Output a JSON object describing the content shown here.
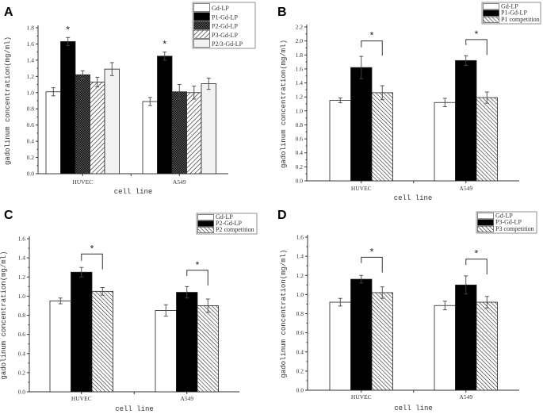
{
  "chart_data": [
    {
      "panel": "A",
      "type": "bar",
      "xlabel": "cell line",
      "ylabel": "gadolinum concentration(mg/ml)",
      "categories": [
        "HUVEC",
        "A549"
      ],
      "ylim": [
        0,
        1.8
      ],
      "yticks": [
        "0.0",
        "0.2",
        "0.4",
        "0.6",
        "0.8",
        "1.0",
        "1.2",
        "1.4",
        "1.6",
        "1.8"
      ],
      "legend_position": "top-right",
      "series": [
        {
          "name": "Gd-LP",
          "fill": "white",
          "values": [
            1.01,
            0.89
          ],
          "errors": [
            0.05,
            0.05
          ]
        },
        {
          "name": "P1-Gd-LP",
          "fill": "black",
          "values": [
            1.63,
            1.45
          ],
          "errors": [
            0.05,
            0.05
          ]
        },
        {
          "name": "P2-Gd-LP",
          "fill": "crosshatch",
          "values": [
            1.22,
            1.01
          ],
          "errors": [
            0.05,
            0.09
          ]
        },
        {
          "name": "P3-Gd-LP",
          "fill": "backslash-hatch",
          "values": [
            1.13,
            1.0
          ],
          "errors": [
            0.06,
            0.08
          ]
        },
        {
          "name": "P2/3-Gd-LP",
          "fill": "light-gray",
          "values": [
            1.29,
            1.11
          ],
          "errors": [
            0.08,
            0.07
          ]
        }
      ],
      "significance": [
        {
          "category": "HUVEC",
          "series": "P1-Gd-LP",
          "label": "*"
        },
        {
          "category": "A549",
          "series": "P1-Gd-LP",
          "label": "*"
        }
      ]
    },
    {
      "panel": "B",
      "type": "bar",
      "xlabel": "cell line",
      "ylabel": "gadolinum concentration(mg/ml)",
      "categories": [
        "HUVEC",
        "A549"
      ],
      "ylim": [
        0,
        2.2
      ],
      "yticks": [
        "0.0",
        "0.2",
        "0.4",
        "0.6",
        "0.8",
        "1.0",
        "1.2",
        "1.4",
        "1.6",
        "1.8",
        "2.0",
        "2.2"
      ],
      "legend_position": "top-right",
      "series": [
        {
          "name": "Gd-LP",
          "fill": "white",
          "values": [
            1.15,
            1.12
          ],
          "errors": [
            0.035,
            0.06
          ]
        },
        {
          "name": "P1-Gd-LP",
          "fill": "black",
          "values": [
            1.62,
            1.72
          ],
          "errors": [
            0.16,
            0.07
          ]
        },
        {
          "name": "P1 competition",
          "fill": "slash-hatch",
          "values": [
            1.26,
            1.19
          ],
          "errors": [
            0.1,
            0.08
          ]
        }
      ],
      "significance": [
        {
          "category": "HUVEC",
          "between": [
            "P1-Gd-LP",
            "P1 competition"
          ],
          "label": "*",
          "bracket": [
            1.91,
            2.0,
            1.79
          ]
        },
        {
          "category": "A549",
          "between": [
            "P1-Gd-LP",
            "P1 competition"
          ],
          "label": "*",
          "bracket": [
            1.94,
            2.02,
            1.8
          ]
        }
      ]
    },
    {
      "panel": "C",
      "type": "bar",
      "xlabel": "cell line",
      "ylabel": "gadolinum concentration(mg/ml)",
      "categories": [
        "HUVEC",
        "A549"
      ],
      "ylim": [
        0,
        1.6
      ],
      "yticks": [
        "0.0",
        "0.2",
        "0.4",
        "0.6",
        "0.8",
        "1.0",
        "1.2",
        "1.4",
        "1.6"
      ],
      "legend_position": "top-right",
      "series": [
        {
          "name": "Gd-LP",
          "fill": "white",
          "values": [
            0.95,
            0.85
          ],
          "errors": [
            0.03,
            0.06
          ]
        },
        {
          "name": "P2-Gd-LP",
          "fill": "black",
          "values": [
            1.25,
            1.04
          ],
          "errors": [
            0.05,
            0.06
          ]
        },
        {
          "name": "P2 competition",
          "fill": "slash-hatch",
          "values": [
            1.05,
            0.9
          ],
          "errors": [
            0.04,
            0.07
          ]
        }
      ],
      "significance": [
        {
          "category": "HUVEC",
          "between": [
            "P2-Gd-LP",
            "P2 competition"
          ],
          "label": "*",
          "bracket": [
            1.37,
            1.44,
            1.28
          ]
        },
        {
          "category": "A549",
          "between": [
            "P2-Gd-LP",
            "P2 competition"
          ],
          "label": "*",
          "bracket": [
            1.21,
            1.27,
            1.11
          ]
        }
      ]
    },
    {
      "panel": "D",
      "type": "bar",
      "xlabel": "cell line",
      "ylabel": "gadolinum concentration(mg/ml)",
      "categories": [
        "HUVEC",
        "A549"
      ],
      "ylim": [
        0,
        1.6
      ],
      "yticks": [
        "0.0",
        "0.2",
        "0.4",
        "0.6",
        "0.8",
        "1.0",
        "1.2",
        "1.4",
        "1.6"
      ],
      "legend_position": "top-right",
      "series": [
        {
          "name": "Gd-LP",
          "fill": "white",
          "values": [
            0.92,
            0.885
          ],
          "errors": [
            0.04,
            0.045
          ]
        },
        {
          "name": "P3-Gd-LP",
          "fill": "black",
          "values": [
            1.16,
            1.1
          ],
          "errors": [
            0.04,
            0.095
          ]
        },
        {
          "name": "P3 competition",
          "fill": "slash-hatch",
          "values": [
            1.02,
            0.92
          ],
          "errors": [
            0.06,
            0.06
          ]
        }
      ],
      "significance": [
        {
          "category": "HUVEC",
          "between": [
            "P3-Gd-LP",
            "P3 competition"
          ],
          "label": "*",
          "bracket": [
            1.33,
            1.39,
            1.23
          ]
        },
        {
          "category": "A549",
          "between": [
            "P3-Gd-LP",
            "P3 competition"
          ],
          "label": "*",
          "bracket": [
            1.31,
            1.37,
            1.21
          ]
        }
      ]
    }
  ]
}
